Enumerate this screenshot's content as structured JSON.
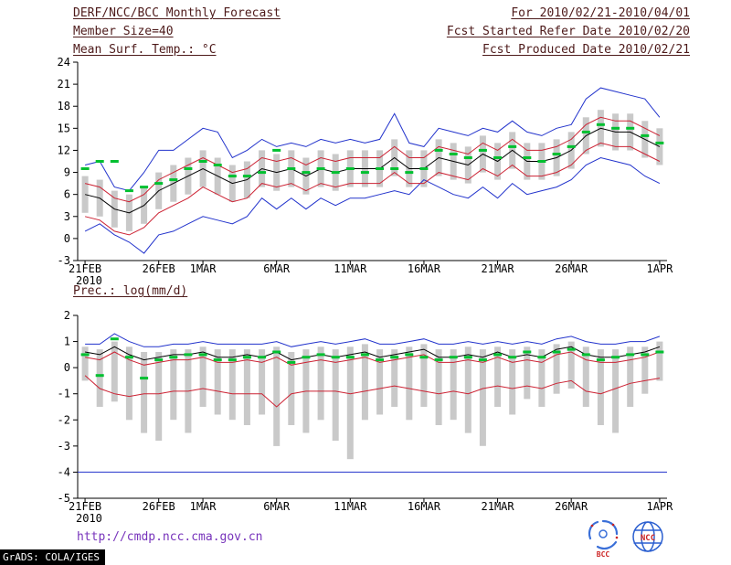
{
  "header": {
    "title": "DERF/NCC/BCC Monthly Forecast",
    "member_size": "Member Size=40",
    "temp_label": "Mean Surf. Temp.: °C",
    "for_range": "For 2010/02/21-2010/04/01",
    "refer_date": "Fcst Started Refer Date 2010/02/20",
    "produced_date": "Fcst Produced Date 2010/02/21"
  },
  "prec_label": "Prec.: log(mm/d)",
  "footer": {
    "url": "http://cmdp.ncc.cma.gov.cn",
    "grads_credit": "GrADS: COLA/IGES",
    "logo_bcc": "BCC",
    "logo_ncc": "NCC"
  },
  "colors": {
    "spread_bar": "#c9c9c9",
    "envelope_blue": "#2233cc",
    "bound_red": "#cc2233",
    "mean_black": "#000000",
    "obs_green": "#00c030",
    "header_text": "#4d1a1a",
    "url_text": "#7733bb"
  },
  "chart_data": [
    {
      "type": "line",
      "name": "mean-surface-temperature",
      "title": "Mean Surf. Temp.: °C",
      "grid": false,
      "legend": "none",
      "n_days": 40,
      "ylim": [
        -3,
        24
      ],
      "yticks": [
        -3,
        0,
        3,
        6,
        9,
        12,
        15,
        18,
        21,
        24
      ],
      "xtick_labels": [
        "21FEB",
        "26FEB",
        "1MAR",
        "6MAR",
        "11MAR",
        "16MAR",
        "21MAR",
        "26MAR",
        "1APR"
      ],
      "xtick_positions": [
        0,
        5,
        8,
        13,
        18,
        23,
        28,
        33,
        39
      ],
      "x_sublabel": "2010",
      "series": [
        {
          "name": "ensemble-spread",
          "type": "bar",
          "color": "#c9c9c9",
          "low": [
            3.5,
            3.0,
            1.5,
            1.0,
            2.0,
            4.0,
            5.0,
            6.0,
            7.0,
            6.0,
            5.0,
            5.5,
            7.0,
            6.5,
            7.0,
            6.0,
            7.0,
            6.5,
            7.0,
            7.0,
            7.0,
            8.5,
            7.0,
            7.0,
            8.5,
            8.0,
            7.5,
            9.0,
            8.0,
            9.5,
            8.0,
            8.0,
            8.5,
            9.5,
            11.5,
            12.5,
            12.0,
            12.0,
            11.0,
            10.0
          ],
          "high": [
            8.5,
            8.0,
            6.5,
            6.0,
            7.0,
            9.0,
            10.0,
            11.0,
            12.0,
            11.0,
            10.0,
            10.5,
            12.0,
            11.5,
            12.0,
            11.0,
            12.0,
            11.5,
            12.0,
            12.0,
            12.0,
            13.5,
            12.0,
            12.0,
            13.5,
            13.0,
            12.5,
            14.0,
            13.0,
            14.5,
            13.0,
            13.0,
            13.5,
            14.5,
            16.5,
            17.5,
            17.0,
            17.0,
            16.0,
            15.0
          ]
        },
        {
          "name": "envelope-max",
          "type": "line",
          "color": "#2233cc",
          "values": [
            10.0,
            10.5,
            7.0,
            6.5,
            9.0,
            12.0,
            12.0,
            13.5,
            15.0,
            14.5,
            11.0,
            12.0,
            13.5,
            12.5,
            13.0,
            12.5,
            13.5,
            13.0,
            13.5,
            13.0,
            13.5,
            17.0,
            13.0,
            12.5,
            15.0,
            14.5,
            14.0,
            15.0,
            14.5,
            16.0,
            14.5,
            14.0,
            15.0,
            15.5,
            19.0,
            20.5,
            20.0,
            19.5,
            19.0,
            16.5
          ]
        },
        {
          "name": "envelope-min",
          "type": "line",
          "color": "#2233cc",
          "values": [
            1.0,
            2.0,
            0.5,
            -0.5,
            -2.0,
            0.5,
            1.0,
            2.0,
            3.0,
            2.5,
            2.0,
            3.0,
            5.5,
            4.0,
            5.5,
            4.0,
            5.5,
            4.5,
            5.5,
            5.5,
            6.0,
            6.5,
            6.0,
            8.0,
            7.0,
            6.0,
            5.5,
            7.0,
            5.5,
            7.5,
            6.0,
            6.5,
            7.0,
            8.0,
            10.0,
            11.0,
            10.5,
            10.0,
            8.5,
            7.5
          ]
        },
        {
          "name": "red-upper-bound",
          "type": "line",
          "color": "#cc2233",
          "values": [
            7.5,
            7.0,
            5.5,
            5.0,
            6.0,
            8.0,
            9.0,
            10.0,
            11.0,
            10.0,
            9.0,
            9.5,
            11.0,
            10.5,
            11.0,
            10.0,
            11.0,
            10.5,
            11.0,
            11.0,
            11.0,
            12.5,
            11.0,
            11.0,
            12.5,
            12.0,
            11.5,
            13.0,
            12.0,
            13.5,
            12.0,
            12.0,
            12.5,
            13.5,
            15.5,
            16.5,
            16.0,
            16.0,
            15.0,
            14.0
          ]
        },
        {
          "name": "red-lower-bound",
          "type": "line",
          "color": "#cc2233",
          "values": [
            3.0,
            2.5,
            1.0,
            0.5,
            1.5,
            3.5,
            4.5,
            5.5,
            7.0,
            6.0,
            5.0,
            5.5,
            7.5,
            7.0,
            7.5,
            6.5,
            7.5,
            7.0,
            7.5,
            7.5,
            7.5,
            9.0,
            7.5,
            7.5,
            9.0,
            8.5,
            8.0,
            9.5,
            8.5,
            10.0,
            8.5,
            8.5,
            9.0,
            10.0,
            12.0,
            13.0,
            12.5,
            12.5,
            11.5,
            10.5
          ]
        },
        {
          "name": "ensemble-mean",
          "type": "line",
          "color": "#000000",
          "values": [
            6.0,
            5.5,
            4.0,
            3.5,
            4.5,
            6.5,
            7.5,
            8.5,
            9.5,
            8.5,
            7.5,
            8.0,
            9.5,
            9.0,
            9.5,
            8.5,
            9.5,
            9.0,
            9.5,
            9.5,
            9.5,
            11.0,
            9.5,
            9.5,
            11.0,
            10.5,
            10.0,
            11.5,
            10.5,
            12.0,
            10.5,
            10.5,
            11.0,
            12.0,
            14.0,
            15.0,
            14.5,
            14.5,
            13.5,
            12.5
          ]
        },
        {
          "name": "observation-dashes",
          "type": "dash",
          "color": "#00c030",
          "values": [
            9.5,
            10.5,
            10.5,
            6.5,
            7.0,
            7.5,
            8.0,
            9.5,
            10.5,
            10.0,
            8.5,
            8.5,
            9.0,
            12.0,
            9.5,
            9.0,
            9.5,
            9.0,
            9.5,
            9.0,
            9.5,
            9.5,
            9.0,
            9.5,
            12.0,
            11.5,
            11.0,
            12.0,
            11.0,
            12.5,
            11.0,
            10.5,
            11.5,
            12.5,
            14.5,
            15.5,
            15.0,
            15.0,
            14.0,
            13.0
          ]
        }
      ]
    },
    {
      "type": "line",
      "name": "precipitation",
      "title": "Prec.: log(mm/d)",
      "grid": false,
      "legend": "none",
      "n_days": 40,
      "ylim": [
        -5,
        2
      ],
      "yticks": [
        -5,
        -4,
        -3,
        -2,
        -1,
        0,
        1,
        2
      ],
      "xtick_labels": [
        "21FEB",
        "26FEB",
        "1MAR",
        "6MAR",
        "11MAR",
        "16MAR",
        "21MAR",
        "26MAR",
        "1APR"
      ],
      "xtick_positions": [
        0,
        5,
        8,
        13,
        18,
        23,
        28,
        33,
        39
      ],
      "x_sublabel": "2010",
      "series": [
        {
          "name": "ensemble-spread",
          "type": "bar",
          "color": "#c9c9c9",
          "low": [
            -0.5,
            -1.5,
            -1.3,
            -2.0,
            -2.5,
            -2.8,
            -2.0,
            -2.5,
            -1.5,
            -1.8,
            -2.0,
            -2.2,
            -1.8,
            -3.0,
            -2.2,
            -2.5,
            -2.0,
            -2.8,
            -3.5,
            -2.0,
            -1.8,
            -1.5,
            -2.0,
            -1.5,
            -2.2,
            -2.0,
            -2.5,
            -3.0,
            -1.5,
            -1.8,
            -1.2,
            -1.5,
            -1.0,
            -0.8,
            -1.5,
            -2.2,
            -2.5,
            -1.5,
            -1.0,
            -0.5
          ],
          "high": [
            0.8,
            0.7,
            1.0,
            0.8,
            0.6,
            0.6,
            0.7,
            0.7,
            0.8,
            0.7,
            0.7,
            0.7,
            0.7,
            0.8,
            0.6,
            0.7,
            0.8,
            0.7,
            0.8,
            0.9,
            0.7,
            0.7,
            0.8,
            0.9,
            0.7,
            0.7,
            0.8,
            0.7,
            0.8,
            0.7,
            0.8,
            0.7,
            0.9,
            1.0,
            0.8,
            0.7,
            0.7,
            0.8,
            0.8,
            1.0
          ]
        },
        {
          "name": "envelope-max",
          "type": "line",
          "color": "#2233cc",
          "values": [
            0.9,
            0.9,
            1.3,
            1.0,
            0.8,
            0.8,
            0.9,
            0.9,
            1.0,
            0.9,
            0.9,
            0.9,
            0.9,
            1.0,
            0.8,
            0.9,
            1.0,
            0.9,
            1.0,
            1.1,
            0.9,
            0.9,
            1.0,
            1.1,
            0.9,
            0.9,
            1.0,
            0.9,
            1.0,
            0.9,
            1.0,
            0.9,
            1.1,
            1.2,
            1.0,
            0.9,
            0.9,
            1.0,
            1.0,
            1.2
          ]
        },
        {
          "name": "envelope-min-floor",
          "type": "hline",
          "color": "#2233cc",
          "value": -4
        },
        {
          "name": "red-upper-bound",
          "type": "line",
          "color": "#cc2233",
          "values": [
            0.4,
            0.3,
            0.6,
            0.3,
            0.1,
            0.2,
            0.3,
            0.3,
            0.4,
            0.2,
            0.2,
            0.3,
            0.2,
            0.4,
            0.1,
            0.2,
            0.3,
            0.2,
            0.3,
            0.4,
            0.2,
            0.3,
            0.4,
            0.5,
            0.2,
            0.2,
            0.3,
            0.2,
            0.4,
            0.2,
            0.3,
            0.2,
            0.5,
            0.6,
            0.3,
            0.2,
            0.2,
            0.3,
            0.4,
            0.6
          ]
        },
        {
          "name": "red-lower-bound",
          "type": "line",
          "color": "#cc2233",
          "values": [
            -0.3,
            -0.8,
            -1.0,
            -1.1,
            -1.0,
            -1.0,
            -0.9,
            -0.9,
            -0.8,
            -0.9,
            -1.0,
            -1.0,
            -1.0,
            -1.5,
            -1.0,
            -0.9,
            -0.9,
            -0.9,
            -1.0,
            -0.9,
            -0.8,
            -0.7,
            -0.8,
            -0.9,
            -1.0,
            -0.9,
            -1.0,
            -0.8,
            -0.7,
            -0.8,
            -0.7,
            -0.8,
            -0.6,
            -0.5,
            -0.9,
            -1.0,
            -0.8,
            -0.6,
            -0.5,
            -0.4
          ]
        },
        {
          "name": "ensemble-mean",
          "type": "line",
          "color": "#000000",
          "values": [
            0.6,
            0.5,
            0.8,
            0.5,
            0.3,
            0.4,
            0.5,
            0.5,
            0.6,
            0.4,
            0.4,
            0.5,
            0.4,
            0.6,
            0.3,
            0.4,
            0.5,
            0.4,
            0.5,
            0.6,
            0.4,
            0.5,
            0.6,
            0.7,
            0.4,
            0.4,
            0.5,
            0.4,
            0.6,
            0.4,
            0.5,
            0.4,
            0.7,
            0.8,
            0.5,
            0.4,
            0.4,
            0.5,
            0.6,
            0.8
          ]
        },
        {
          "name": "observation-dashes",
          "type": "dash",
          "color": "#00c030",
          "values": [
            0.5,
            -0.3,
            1.1,
            0.4,
            -0.4,
            0.3,
            0.4,
            0.5,
            0.5,
            0.3,
            0.3,
            0.4,
            0.4,
            0.6,
            0.2,
            0.4,
            0.5,
            0.4,
            0.4,
            0.5,
            0.3,
            0.4,
            0.5,
            0.4,
            0.3,
            0.4,
            0.4,
            0.3,
            0.5,
            0.4,
            0.6,
            0.4,
            0.6,
            0.7,
            0.5,
            0.3,
            0.4,
            0.5,
            0.5,
            0.6
          ]
        }
      ]
    }
  ]
}
